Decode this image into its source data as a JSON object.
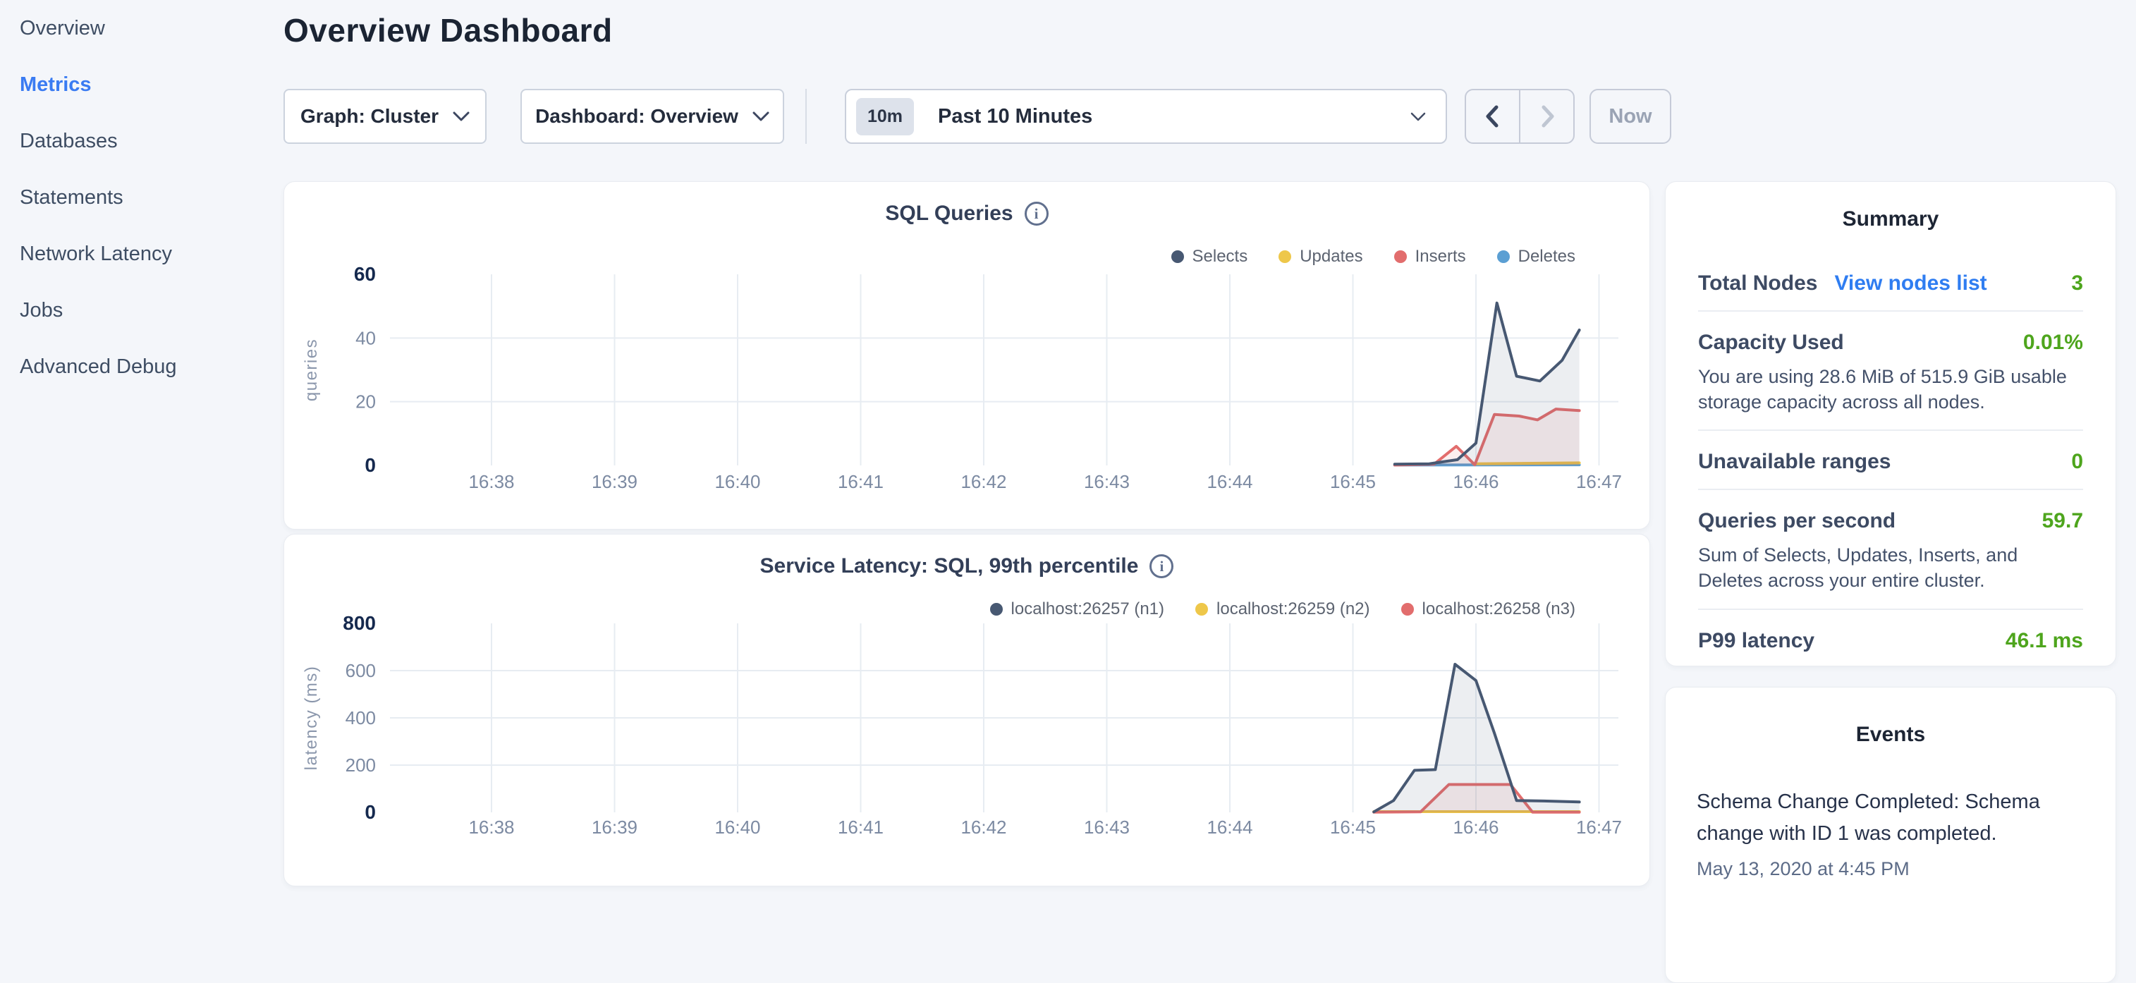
{
  "page": {
    "title": "Overview Dashboard"
  },
  "sidebar": {
    "items": [
      "Overview",
      "Metrics",
      "Databases",
      "Statements",
      "Network Latency",
      "Jobs",
      "Advanced Debug"
    ],
    "active_item": "Metrics"
  },
  "controls": {
    "graph_dropdown": "Graph: Cluster",
    "dashboard_dropdown": "Dashboard: Overview",
    "time_badge": "10m",
    "time_label": "Past 10 Minutes",
    "now_button": "Now"
  },
  "colors": {
    "accent_blue": "#3a7bf2",
    "link_blue": "#2f7df1",
    "status_green": "#4ea51d",
    "series_navy": "#475872",
    "series_yellow": "#eec74a",
    "series_red": "#e26d6d",
    "series_blue": "#5b9fd3"
  },
  "summary": {
    "title": "Summary",
    "rows": [
      {
        "label": "Total Nodes",
        "link": "View nodes list",
        "value": "3"
      },
      {
        "label": "Capacity Used",
        "value": "0.01%",
        "desc": "You are using 28.6 MiB of 515.9 GiB usable storage capacity across all nodes."
      },
      {
        "label": "Unavailable ranges",
        "value": "0"
      },
      {
        "label": "Queries per second",
        "value": "59.7",
        "desc": "Sum of Selects, Updates, Inserts, and Deletes across your entire cluster."
      },
      {
        "label": "P99 latency",
        "value": "46.1 ms"
      }
    ]
  },
  "events": {
    "title": "Events",
    "items": [
      {
        "message": "Schema Change Completed: Schema change with ID 1 was completed.",
        "timestamp": "May 13, 2020 at 4:45 PM"
      }
    ]
  },
  "chart_data": [
    {
      "type": "area",
      "title": "SQL Queries",
      "ylabel": "queries",
      "ylim": [
        0,
        60
      ],
      "yticks": [
        0,
        20,
        40,
        60
      ],
      "xticks": [
        "16:38",
        "16:39",
        "16:40",
        "16:41",
        "16:42",
        "16:43",
        "16:44",
        "16:45",
        "16:46",
        "16:47"
      ],
      "x_unit": "minutes after 16:00 (decimal)",
      "grid": true,
      "legend_position": "top-right",
      "legend": [
        {
          "label": "Selects",
          "color": "#475872"
        },
        {
          "label": "Updates",
          "color": "#eec74a"
        },
        {
          "label": "Inserts",
          "color": "#e26d6d"
        },
        {
          "label": "Deletes",
          "color": "#5b9fd3"
        }
      ],
      "series": [
        {
          "name": "Deletes",
          "color": "#5b9fd3",
          "points": [
            [
              45.34,
              0.1
            ],
            [
              46.84,
              0.2
            ]
          ]
        },
        {
          "name": "Updates",
          "color": "#eec74a",
          "points": [
            [
              45.98,
              0.5
            ],
            [
              46.84,
              0.8
            ]
          ]
        },
        {
          "name": "Inserts",
          "color": "#e26d6d",
          "points": [
            [
              45.34,
              0.1
            ],
            [
              45.66,
              0.4
            ],
            [
              45.84,
              6
            ],
            [
              45.99,
              0.2
            ],
            [
              46.15,
              16
            ],
            [
              46.35,
              15.5
            ],
            [
              46.5,
              14.3
            ],
            [
              46.65,
              17.7
            ],
            [
              46.84,
              17.2
            ]
          ]
        },
        {
          "name": "Selects",
          "color": "#475872",
          "points": [
            [
              45.34,
              0.4
            ],
            [
              45.62,
              0.5
            ],
            [
              45.85,
              1.8
            ],
            [
              46.0,
              7
            ],
            [
              46.17,
              51
            ],
            [
              46.33,
              28
            ],
            [
              46.52,
              26.5
            ],
            [
              46.7,
              33
            ],
            [
              46.84,
              42.5
            ]
          ]
        }
      ]
    },
    {
      "type": "area",
      "title": "Service Latency: SQL, 99th percentile",
      "ylabel": "latency (ms)",
      "ylim": [
        0,
        800
      ],
      "yticks": [
        0,
        200,
        400,
        600,
        800
      ],
      "xticks": [
        "16:38",
        "16:39",
        "16:40",
        "16:41",
        "16:42",
        "16:43",
        "16:44",
        "16:45",
        "16:46",
        "16:47"
      ],
      "x_unit": "minutes after 16:00 (decimal)",
      "grid": true,
      "legend_position": "top-right",
      "legend": [
        {
          "label": "localhost:26257 (n1)",
          "color": "#475872"
        },
        {
          "label": "localhost:26259 (n2)",
          "color": "#eec74a"
        },
        {
          "label": "localhost:26258 (n3)",
          "color": "#e26d6d"
        }
      ],
      "series": [
        {
          "name": "localhost:26259 (n2)",
          "color": "#eec74a",
          "points": [
            [
              45.17,
              3
            ],
            [
              46.84,
              3
            ]
          ]
        },
        {
          "name": "localhost:26258 (n3)",
          "color": "#e26d6d",
          "points": [
            [
              45.17,
              1
            ],
            [
              45.55,
              2
            ],
            [
              45.78,
              118
            ],
            [
              46.28,
              118
            ],
            [
              46.46,
              1
            ],
            [
              46.84,
              1
            ]
          ]
        },
        {
          "name": "localhost:26257 (n1)",
          "color": "#475872",
          "points": [
            [
              45.17,
              2
            ],
            [
              45.33,
              50
            ],
            [
              45.5,
              178
            ],
            [
              45.67,
              181
            ],
            [
              45.83,
              627
            ],
            [
              46.0,
              558
            ],
            [
              46.15,
              335
            ],
            [
              46.33,
              50
            ],
            [
              46.55,
              48
            ],
            [
              46.84,
              44
            ]
          ]
        }
      ]
    }
  ]
}
